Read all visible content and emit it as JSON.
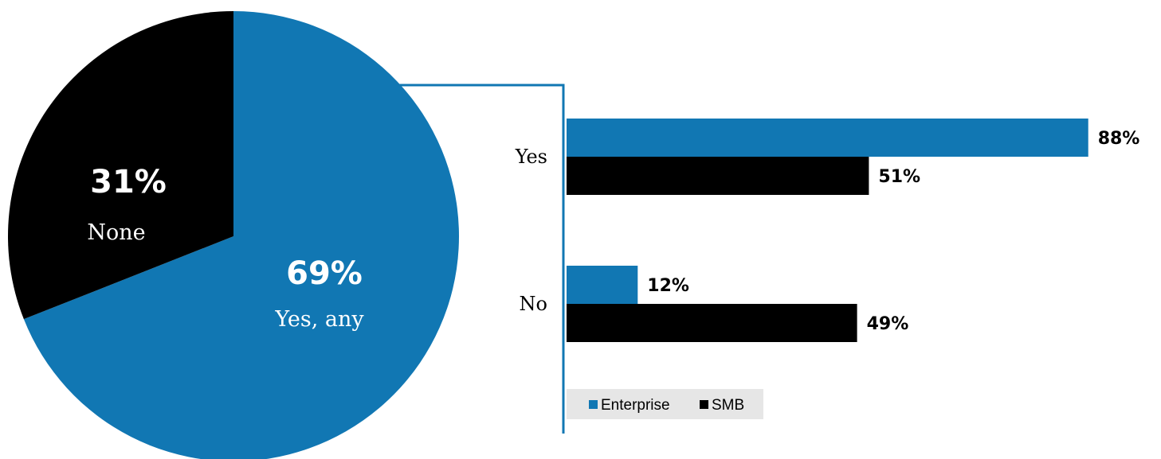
{
  "colors": {
    "enterprise": "#1177b3",
    "smb": "#000000",
    "connector": "#1177b3",
    "legend_bg": "#e6e6e6"
  },
  "chart_data": [
    {
      "type": "pie",
      "slices": [
        {
          "name": "Yes, any",
          "value": 69,
          "label": "69%",
          "color": "#1177b3"
        },
        {
          "name": "None",
          "value": 31,
          "label": "31%",
          "color": "#000000"
        }
      ]
    },
    {
      "type": "bar",
      "orientation": "horizontal",
      "categories": [
        "Yes",
        "No"
      ],
      "series": [
        {
          "name": "Enterprise",
          "color": "#1177b3",
          "values": [
            88,
            12
          ],
          "labels": [
            "88%",
            "12%"
          ]
        },
        {
          "name": "SMB",
          "color": "#000000",
          "values": [
            51,
            49
          ],
          "labels": [
            "51%",
            "49%"
          ]
        }
      ],
      "xlim": [
        0,
        100
      ],
      "legend": "bottom-left"
    }
  ]
}
